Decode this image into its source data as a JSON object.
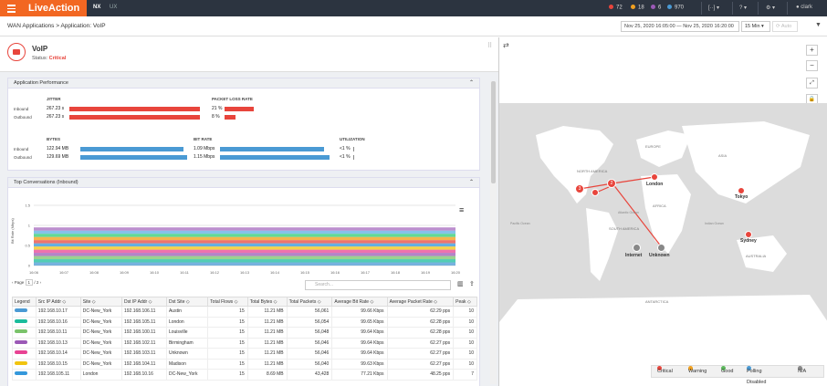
{
  "brand": {
    "logo": "LiveAction",
    "tab_nx": "NX",
    "tab_ux": "UX"
  },
  "alerts": [
    {
      "value": "72",
      "color": "#e8453c"
    },
    {
      "value": "18",
      "color": "#f0a020"
    },
    {
      "value": "6",
      "color": "#9b59b6"
    },
    {
      "value": "970",
      "color": "#4a9ad4"
    }
  ],
  "user": "clark",
  "breadcrumb": "WAN Applications  >  Application: VoIP",
  "daterange": "Nov 25, 2020 16:05:00 — Nov 25, 2020 16:20:00",
  "interval": "15 Min",
  "auto_label": "Auto",
  "app": {
    "name": "VoIP",
    "status_label": "Status:",
    "status": "Critical"
  },
  "perf": {
    "title": "Application Performance",
    "jitter_label": "JITTER",
    "loss_label": "PACKET LOSS RATE",
    "bytes_label": "BYTES",
    "bitrate_label": "BIT RATE",
    "util_label": "UTILIZATION",
    "inbound": "Inbound",
    "outbound": "Outbound",
    "jitter_in": "267.23 s",
    "jitter_out": "267.23 s",
    "loss_in": "21 %",
    "loss_out": "8 %",
    "bytes_in": "122.94 MB",
    "bytes_out": "129.69 MB",
    "bitrate_in": "1.09 Mbps",
    "bitrate_out": "1.15 Mbps",
    "util_in": "<1 %",
    "util_out": "<1 %",
    "loss_in_frac": 0.21,
    "loss_out_frac": 0.08,
    "bitrate_in_frac": 0.95,
    "bitrate_out_frac": 1.0
  },
  "conversations": {
    "title": "Top Conversations (Inbound)",
    "ylabel": "Bit Rate (Mbps)",
    "yticks": [
      "1.5",
      "1",
      "0.5",
      "0"
    ],
    "xticks": [
      "16:06",
      "16:07",
      "16:08",
      "16:09",
      "16:10",
      "16:11",
      "16:12",
      "16:13",
      "16:14",
      "16:15",
      "16:16",
      "16:17",
      "16:18",
      "16:19",
      "16:20"
    ],
    "page_label": "Page",
    "page": "1",
    "page_of": "/ 2",
    "search_placeholder": "Search...",
    "columns": [
      "Legend",
      "Src IP Addr",
      "Site",
      "Dst IP Addr",
      "Dst Site",
      "Total Flows",
      "Total Bytes",
      "Total Packets",
      "Average Bit Rate",
      "Average Packet Rate",
      "Peak"
    ],
    "rows": [
      {
        "color": "#4a9ad4",
        "src": "192.168.10.17",
        "site": "DC-New_York",
        "dst": "192.168.106.11",
        "dsite": "Austin",
        "flows": "15",
        "bytes": "11.21 MB",
        "packets": "56,061",
        "abr": "99.66 Kbps",
        "apr": "62.29 pps",
        "peak": "10"
      },
      {
        "color": "#1abc9c",
        "src": "192.168.10.16",
        "site": "DC-New_York",
        "dst": "192.168.105.11",
        "dsite": "London",
        "flows": "15",
        "bytes": "11.21 MB",
        "packets": "56,054",
        "abr": "99.65 Kbps",
        "apr": "62.28 pps",
        "peak": "10"
      },
      {
        "color": "#7ac36a",
        "src": "192.168.10.11",
        "site": "DC-New_York",
        "dst": "192.168.100.11",
        "dsite": "Louisville",
        "flows": "15",
        "bytes": "11.21 MB",
        "packets": "56,048",
        "abr": "99.64 Kbps",
        "apr": "62.28 pps",
        "peak": "10"
      },
      {
        "color": "#9b59b6",
        "src": "192.168.10.13",
        "site": "DC-New_York",
        "dst": "192.168.102.11",
        "dsite": "Birmingham",
        "flows": "15",
        "bytes": "11.21 MB",
        "packets": "56,046",
        "abr": "99.64 Kbps",
        "apr": "62.27 pps",
        "peak": "10"
      },
      {
        "color": "#e84393",
        "src": "192.168.10.14",
        "site": "DC-New_York",
        "dst": "192.168.103.11",
        "dsite": "Unknown",
        "flows": "15",
        "bytes": "11.21 MB",
        "packets": "56,046",
        "abr": "99.64 Kbps",
        "apr": "62.27 pps",
        "peak": "10"
      },
      {
        "color": "#f1c40f",
        "src": "192.168.10.15",
        "site": "DC-New_York",
        "dst": "192.168.104.11",
        "dsite": "Madison",
        "flows": "15",
        "bytes": "11.21 MB",
        "packets": "56,040",
        "abr": "99.63 Kbps",
        "apr": "62.27 pps",
        "peak": "10"
      },
      {
        "color": "#3498db",
        "src": "192.168.105.11",
        "site": "London",
        "dst": "192.168.10.16",
        "dsite": "DC-New_York",
        "flows": "15",
        "bytes": "8.69 MB",
        "packets": "43,428",
        "abr": "77.21 Kbps",
        "apr": "48.25 pps",
        "peak": "7"
      }
    ]
  },
  "chart_data": {
    "type": "area",
    "x": [
      "16:06",
      "16:07",
      "16:08",
      "16:09",
      "16:10",
      "16:11",
      "16:12",
      "16:13",
      "16:14",
      "16:15",
      "16:16",
      "16:17",
      "16:18",
      "16:19",
      "16:20"
    ],
    "ylabel": "Bit Rate (Mbps)",
    "ylim": [
      0,
      1.5
    ],
    "stacked_total": 0.95,
    "series_colors": [
      "#4a9ad4",
      "#1abc9c",
      "#7ac36a",
      "#9b59b6",
      "#e84393",
      "#f1c40f",
      "#3498db",
      "#e8453c",
      "#f39c12",
      "#2ecc71",
      "#5dade2",
      "#a569bd"
    ]
  },
  "map": {
    "labels": {
      "london": "London",
      "tokyo": "Tokyo",
      "sydney": "Sydney",
      "internet": "Internet",
      "unknown": "Unknown",
      "north_america": "NORTH AMERICA",
      "south_america": "SOUTH AMERICA",
      "africa": "AFRICA",
      "asia": "ASIA",
      "europe": "EUROPE",
      "australia": "AUSTRALIA",
      "antarctica": "ANTARCTICA",
      "atlantic": "Atlantic Ocean",
      "indian": "Indian Ocean",
      "pacific": "Pacific Ocean"
    },
    "clusters": [
      "3",
      "2"
    ]
  },
  "legend": [
    {
      "label": "Critical",
      "color": "#e8453c"
    },
    {
      "label": "Warning",
      "color": "#f0a020"
    },
    {
      "label": "Good",
      "color": "#5cb85c"
    },
    {
      "label": "Polling Disabled",
      "color": "#4a9ad4"
    },
    {
      "label": "N/A",
      "color": "#888"
    }
  ]
}
